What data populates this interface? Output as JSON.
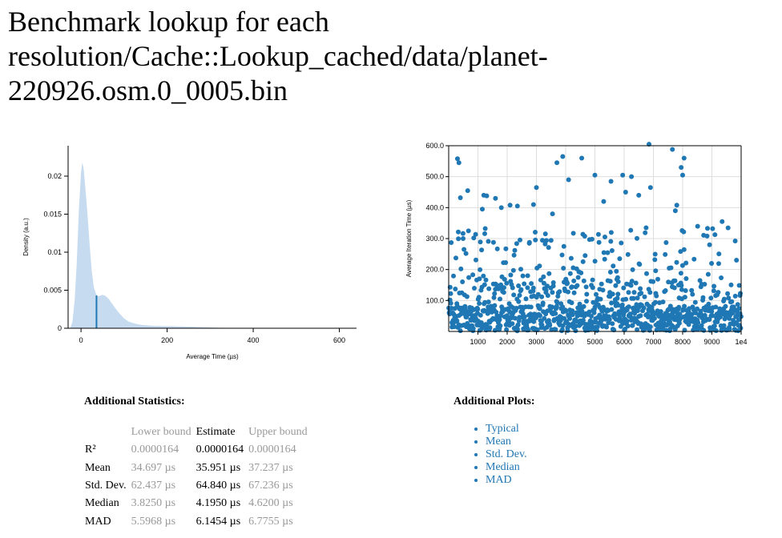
{
  "page": {
    "title": "Benchmark lookup for each resolution/Cache::Lookup_cached/data/planet-220926.osm.0_0005.bin"
  },
  "colors": {
    "density_fill": "#c6dbef",
    "estimate_line": "#1f77b4",
    "scatter_point": "#1f77b4",
    "link": "#1f77b4"
  },
  "chart_data": [
    {
      "type": "area",
      "xlabel": "Average Time (µs)",
      "ylabel": "Density (a.u.)",
      "xlim": [
        -30,
        640
      ],
      "ylim": [
        0,
        0.024
      ],
      "x_ticks": [
        0,
        200,
        400,
        600
      ],
      "x_tick_labels": [
        "0",
        "200",
        "400",
        "600"
      ],
      "y_ticks": [
        0,
        0.005,
        0.01,
        0.015,
        0.02
      ],
      "y_tick_labels": [
        "0",
        "0.005",
        "0.01",
        "0.015",
        "0.02"
      ],
      "grid": false,
      "estimate_marker": {
        "x": 35.951,
        "y": 0.0043
      },
      "series": [
        {
          "x": [
            -25,
            -20,
            -15,
            -10,
            -5,
            0,
            3,
            6,
            10,
            15,
            20,
            25,
            30,
            35,
            40,
            45,
            50,
            55,
            60,
            65,
            70,
            80,
            90,
            100,
            110,
            120,
            130,
            140,
            150,
            160,
            170,
            180,
            190,
            200,
            210,
            220,
            240,
            260,
            280,
            300,
            320,
            340,
            360,
            380,
            400,
            420
          ],
          "y": [
            0,
            0.0008,
            0.0035,
            0.0085,
            0.0155,
            0.0205,
            0.0218,
            0.021,
            0.0185,
            0.015,
            0.011,
            0.0075,
            0.0053,
            0.0045,
            0.0042,
            0.0043,
            0.0044,
            0.0043,
            0.0041,
            0.0038,
            0.0034,
            0.0026,
            0.0019,
            0.0013,
            0.0009,
            0.0007,
            0.00055,
            0.00045,
            0.0004,
            0.00035,
            0.0003,
            0.0003,
            0.00028,
            0.00028,
            0.00027,
            0.00025,
            0.00022,
            0.0002,
            0.00015,
            0.0001,
            7e-05,
            5e-05,
            3e-05,
            2e-05,
            1e-05,
            0
          ]
        }
      ]
    },
    {
      "type": "scatter",
      "xlabel": "",
      "ylabel": "Average Iteration Time (µs)",
      "xlim": [
        0,
        10000
      ],
      "ylim": [
        0,
        600
      ],
      "x_ticks": [
        1000,
        2000,
        3000,
        4000,
        5000,
        6000,
        7000,
        8000,
        9000,
        10000
      ],
      "x_tick_labels": [
        "1000",
        "2000",
        "3000",
        "4000",
        "5000",
        "6000",
        "7000",
        "8000",
        "9000",
        "1e4"
      ],
      "y_ticks": [
        100,
        200,
        300,
        400,
        500,
        600
      ],
      "y_tick_labels": [
        "100.0",
        "200.0",
        "300.0",
        "400.0",
        "500.0",
        "600.0"
      ],
      "grid": true,
      "point_count": 10000,
      "notable_points": [
        {
          "x": 6850,
          "y": 605
        },
        {
          "x": 7650,
          "y": 588
        },
        {
          "x": 8050,
          "y": 560
        },
        {
          "x": 3900,
          "y": 565
        },
        {
          "x": 4550,
          "y": 560
        },
        {
          "x": 300,
          "y": 558
        },
        {
          "x": 350,
          "y": 545
        },
        {
          "x": 3700,
          "y": 545
        },
        {
          "x": 7950,
          "y": 530
        },
        {
          "x": 5950,
          "y": 505
        },
        {
          "x": 5000,
          "y": 505
        },
        {
          "x": 6250,
          "y": 500
        },
        {
          "x": 8000,
          "y": 505
        },
        {
          "x": 4100,
          "y": 490
        },
        {
          "x": 5550,
          "y": 485
        },
        {
          "x": 3000,
          "y": 465
        },
        {
          "x": 6900,
          "y": 465
        },
        {
          "x": 650,
          "y": 455
        },
        {
          "x": 6050,
          "y": 450
        },
        {
          "x": 1200,
          "y": 440
        },
        {
          "x": 1300,
          "y": 438
        },
        {
          "x": 1600,
          "y": 430
        },
        {
          "x": 400,
          "y": 432
        },
        {
          "x": 6500,
          "y": 440
        },
        {
          "x": 5300,
          "y": 420
        },
        {
          "x": 2100,
          "y": 408
        },
        {
          "x": 2350,
          "y": 405
        },
        {
          "x": 2900,
          "y": 410
        },
        {
          "x": 1800,
          "y": 400
        },
        {
          "x": 7800,
          "y": 408
        },
        {
          "x": 1150,
          "y": 395
        },
        {
          "x": 7750,
          "y": 390
        },
        {
          "x": 3550,
          "y": 380
        },
        {
          "x": 9350,
          "y": 355
        }
      ]
    }
  ],
  "stats": {
    "heading": "Additional Statistics:",
    "columns": [
      "",
      "Lower bound",
      "Estimate",
      "Upper bound"
    ],
    "rows": [
      {
        "label": "R²",
        "lower": "0.0000164",
        "estimate": "0.0000164",
        "upper": "0.0000164"
      },
      {
        "label": "Mean",
        "lower": "34.697 µs",
        "estimate": "35.951 µs",
        "upper": "37.237 µs"
      },
      {
        "label": "Std. Dev.",
        "lower": "62.437 µs",
        "estimate": "64.840 µs",
        "upper": "67.236 µs"
      },
      {
        "label": "Median",
        "lower": "3.8250 µs",
        "estimate": "4.1950 µs",
        "upper": "4.6200 µs"
      },
      {
        "label": "MAD",
        "lower": "5.5968 µs",
        "estimate": "6.1454 µs",
        "upper": "6.7755 µs"
      }
    ]
  },
  "plots": {
    "heading": "Additional Plots:",
    "links": [
      "Typical",
      "Mean",
      "Std. Dev.",
      "Median",
      "MAD"
    ]
  }
}
